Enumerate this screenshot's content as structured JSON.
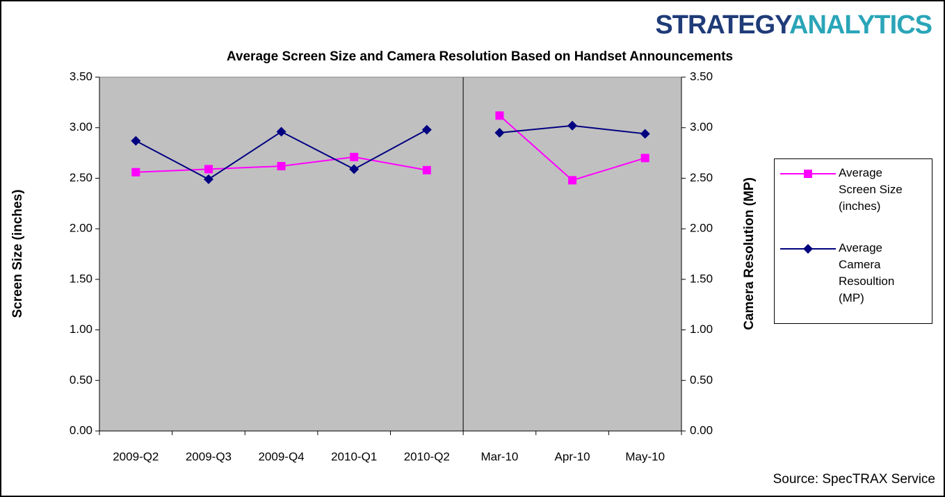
{
  "chart_data": {
    "type": "line",
    "title": "Average Screen Size and Camera Resolution Based on Handset Announcements",
    "logo": [
      "STRATEGY",
      "ANALYTICS"
    ],
    "source": "Source: SpecTRAX Service",
    "ylabel": "Screen Size (inches)",
    "y2label": "Camera Resolution (MP)",
    "categories": [
      "2009-Q2",
      "2009-Q3",
      "2009-Q4",
      "2010-Q1",
      "2010-Q2",
      "Mar-10",
      "Apr-10",
      "May-10"
    ],
    "break_after": 4,
    "series": [
      {
        "name": "Average Screen Size (inches)",
        "color": "#ff00ff",
        "marker": "square",
        "values": [
          2.56,
          2.59,
          2.62,
          2.71,
          2.58,
          3.12,
          2.48,
          2.7
        ]
      },
      {
        "name": "Average Camera Resoultion (MP)",
        "color": "#000080",
        "marker": "diamond",
        "axis": "y2",
        "values": [
          2.87,
          2.49,
          2.96,
          2.59,
          2.98,
          2.95,
          3.02,
          2.94
        ]
      }
    ],
    "ylim": [
      0,
      3.5
    ],
    "yticks": [
      {
        "value": 0,
        "label": "0.00"
      },
      {
        "value": 0.5,
        "label": "0.50"
      },
      {
        "value": 1,
        "label": "1.00"
      },
      {
        "value": 1.5,
        "label": "1.50"
      },
      {
        "value": 2,
        "label": "2.00"
      },
      {
        "value": 2.5,
        "label": "2.50"
      },
      {
        "value": 3,
        "label": "3.00"
      },
      {
        "value": 3.5,
        "label": "3.50"
      }
    ],
    "y2lim": [
      0,
      3.5
    ],
    "y2ticks": [
      {
        "value": 0,
        "label": "0.00"
      },
      {
        "value": 0.5,
        "label": "0.50"
      },
      {
        "value": 1,
        "label": "1.00"
      },
      {
        "value": 1.5,
        "label": "1.50"
      },
      {
        "value": 2,
        "label": "2.00"
      },
      {
        "value": 2.5,
        "label": "2.50"
      },
      {
        "value": 3,
        "label": "3.00"
      },
      {
        "value": 3.5,
        "label": "3.50"
      }
    ],
    "plot_background": "#c0c0c0",
    "legend": "right",
    "grid": false
  }
}
